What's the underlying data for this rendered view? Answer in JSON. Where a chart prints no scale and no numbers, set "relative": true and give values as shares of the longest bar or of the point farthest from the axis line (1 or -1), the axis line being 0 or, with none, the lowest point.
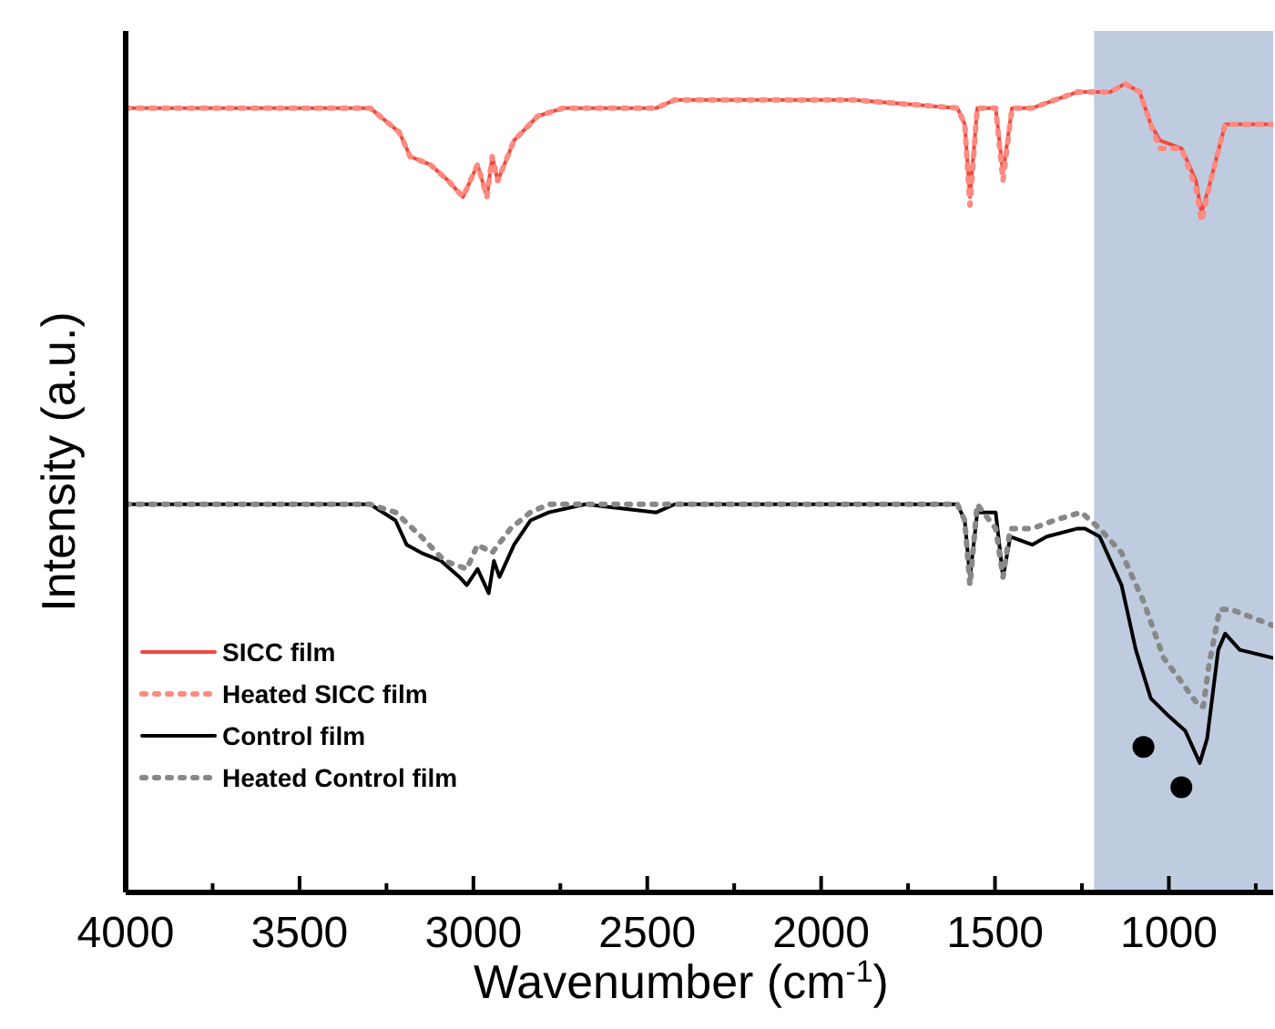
{
  "chart_data": {
    "type": "line",
    "relative": true,
    "xlabel": "Wavenumber (cm$^{-1}$)",
    "ylabel": "Intensity (a.u.)",
    "xlim": [
      4000,
      700
    ],
    "xticks": [
      4000,
      {
        "value": 3750,
        "label": null
      },
      3500,
      {
        "value": 3250,
        "label": null
      },
      3000,
      {
        "value": 2750,
        "label": null
      },
      2500,
      {
        "value": 2250,
        "label": null
      },
      2000,
      {
        "value": 1750,
        "label": null
      },
      1500,
      {
        "value": 1250,
        "label": null
      },
      1000,
      {
        "value": 750,
        "label": null
      }
    ],
    "tick_labels": "x",
    "grid": false,
    "legend": "bottom left",
    "bands": [
      {
        "axis": "x",
        "from": 1215,
        "to": 700,
        "color": "#bfcce0"
      }
    ],
    "series": [
      {
        "name": "SICC film",
        "color": "#f04a3e",
        "line_style": "solid",
        "x": [
          4000,
          3297,
          3213,
          3182,
          3124,
          3072,
          3030,
          2988,
          2961,
          2946,
          2930,
          2883,
          2815,
          2741,
          2547,
          2474,
          2421,
          1907,
          1608,
          1587,
          1572,
          1551,
          1498,
          1477,
          1451,
          1393,
          1262,
          1168,
          1126,
          1084,
          1052,
          1026,
          963,
          922,
          906,
          880,
          838,
          775,
          700
        ],
        "values": [
          0.97,
          0.97,
          0.94,
          0.91,
          0.9,
          0.88,
          0.86,
          0.9,
          0.86,
          0.91,
          0.88,
          0.93,
          0.96,
          0.97,
          0.97,
          0.97,
          0.98,
          0.98,
          0.97,
          0.95,
          0.86,
          0.97,
          0.97,
          0.89,
          0.97,
          0.97,
          0.99,
          0.99,
          1,
          0.99,
          0.95,
          0.93,
          0.92,
          0.88,
          0.84,
          0.88,
          0.95,
          0.95,
          0.95
        ]
      },
      {
        "name": "Heated SICC film",
        "color": "#ff8a80",
        "line_style": "dotted",
        "x": [
          4000,
          3297,
          3213,
          3182,
          3124,
          3072,
          3030,
          2988,
          2961,
          2946,
          2930,
          2883,
          2815,
          2741,
          2547,
          2474,
          2421,
          1907,
          1608,
          1587,
          1572,
          1551,
          1498,
          1477,
          1451,
          1393,
          1262,
          1168,
          1126,
          1084,
          1052,
          1026,
          963,
          922,
          906,
          880,
          838,
          775,
          700
        ],
        "values": [
          0.97,
          0.97,
          0.94,
          0.91,
          0.9,
          0.88,
          0.86,
          0.9,
          0.86,
          0.91,
          0.88,
          0.93,
          0.96,
          0.97,
          0.97,
          0.97,
          0.98,
          0.98,
          0.97,
          0.95,
          0.85,
          0.97,
          0.97,
          0.88,
          0.97,
          0.97,
          0.99,
          0.99,
          1,
          0.99,
          0.95,
          0.92,
          0.92,
          0.87,
          0.83,
          0.88,
          0.95,
          0.95,
          0.95
        ]
      },
      {
        "name": "Control film",
        "color": "#000000",
        "line_style": "solid",
        "x": [
          4000,
          3297,
          3224,
          3192,
          3150,
          3093,
          3040,
          3019,
          2988,
          2956,
          2941,
          2925,
          2883,
          2836,
          2783,
          2678,
          2474,
          2421,
          1907,
          1608,
          1587,
          1572,
          1551,
          1498,
          1477,
          1456,
          1393,
          1351,
          1262,
          1241,
          1199,
          1136,
          1095,
          1052,
          1005,
          953,
          911,
          890,
          858,
          838,
          796,
          700
        ],
        "values": [
          0.48,
          0.48,
          0.46,
          0.43,
          0.42,
          0.41,
          0.39,
          0.38,
          0.4,
          0.37,
          0.41,
          0.39,
          0.43,
          0.46,
          0.47,
          0.48,
          0.47,
          0.48,
          0.48,
          0.48,
          0.46,
          0.39,
          0.47,
          0.47,
          0.39,
          0.44,
          0.43,
          0.44,
          0.45,
          0.45,
          0.44,
          0.38,
          0.3,
          0.24,
          0.22,
          0.2,
          0.16,
          0.19,
          0.3,
          0.32,
          0.3,
          0.29
        ]
      },
      {
        "name": "Heated Control film",
        "color": "#888888",
        "line_style": "dotted",
        "x": [
          4000,
          3297,
          3224,
          3150,
          3083,
          3019,
          2988,
          2946,
          2893,
          2836,
          2783,
          2474,
          1907,
          1608,
          1587,
          1572,
          1551,
          1498,
          1477,
          1456,
          1393,
          1330,
          1252,
          1199,
          1136,
          1073,
          1015,
          963,
          913,
          901,
          885,
          854,
          822,
          700
        ],
        "values": [
          0.48,
          0.48,
          0.47,
          0.44,
          0.41,
          0.4,
          0.43,
          0.42,
          0.45,
          0.47,
          0.48,
          0.48,
          0.48,
          0.48,
          0.46,
          0.38,
          0.48,
          0.45,
          0.39,
          0.45,
          0.45,
          0.46,
          0.47,
          0.45,
          0.42,
          0.36,
          0.29,
          0.26,
          0.23,
          0.23,
          0.28,
          0.35,
          0.35,
          0.33
        ]
      },
      {
        "type": "scatter",
        "marker": "circle",
        "color": "#000000",
        "x": [
          1073,
          964
        ],
        "values": [
          0.18,
          0.13
        ]
      }
    ]
  }
}
